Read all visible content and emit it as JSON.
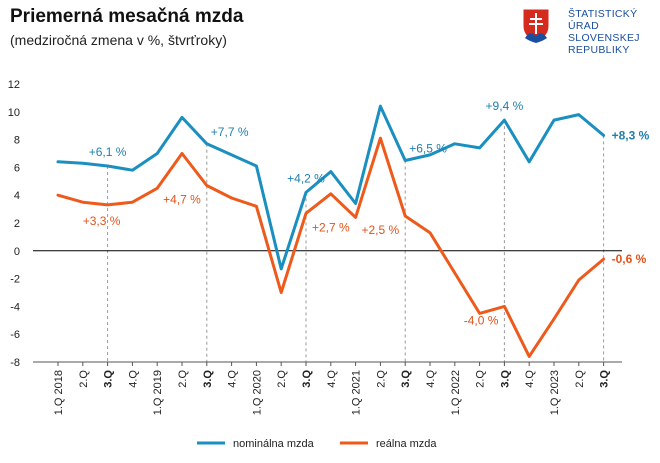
{
  "header": {
    "title": "Priemerná mesačná mzda",
    "subtitle": "(medziročná zmena v %, štvrťroky)"
  },
  "logo": {
    "lines": [
      "ŠTATISTICKÝ",
      "ÚRAD",
      "SLOVENSKEJ",
      "REPUBLIKY"
    ],
    "icon": "slovak-coat-of-arms-icon"
  },
  "colors": {
    "nominal": "#1a8fc0",
    "real": "#ee5a1c",
    "label_nominal": "#1f7fae",
    "label_real": "#e0531a"
  },
  "chart_data": {
    "type": "line",
    "title": "Priemerná mesačná mzda",
    "subtitle": "(medziročná zmena v %, štvrťroky)",
    "categories": [
      "1.Q 2018",
      "2.Q",
      "3.Q",
      "4.Q",
      "1.Q 2019",
      "2.Q",
      "3.Q",
      "4.Q",
      "1.Q 2020",
      "2.Q",
      "3.Q",
      "4.Q",
      "1.Q 2021",
      "2.Q",
      "3.Q",
      "4.Q",
      "1.Q 2022",
      "2.Q",
      "3.Q",
      "4.Q",
      "1.Q 2023",
      "2.Q",
      "3.Q"
    ],
    "bold_categories": [
      2,
      6,
      10,
      14,
      18,
      22
    ],
    "ylim": [
      -8,
      12
    ],
    "yticks": [
      -8,
      -6,
      -4,
      -2,
      0,
      2,
      4,
      6,
      8,
      10,
      12
    ],
    "grid": false,
    "legend_position": "bottom",
    "series": [
      {
        "name": "nominálna mzda",
        "key": "nominal",
        "values": [
          6.4,
          6.3,
          6.1,
          5.8,
          7.0,
          9.6,
          7.7,
          6.9,
          6.1,
          -1.3,
          4.2,
          5.7,
          3.4,
          10.4,
          6.5,
          6.9,
          7.7,
          7.4,
          9.4,
          6.4,
          9.4,
          9.8,
          8.3
        ]
      },
      {
        "name": "reálna mzda",
        "key": "real",
        "values": [
          4.0,
          3.5,
          3.3,
          3.5,
          4.5,
          7.0,
          4.7,
          3.8,
          3.2,
          -3.0,
          2.7,
          4.1,
          2.4,
          8.1,
          2.5,
          1.3,
          -1.6,
          -4.5,
          -4.0,
          -7.6,
          -4.9,
          -2.1,
          -0.6
        ]
      }
    ],
    "annotations": [
      {
        "series": "nominal",
        "index": 2,
        "text": "+6,1 %",
        "pos": "above"
      },
      {
        "series": "nominal",
        "index": 6,
        "text": "+7,7 %",
        "pos": "above-right"
      },
      {
        "series": "nominal",
        "index": 10,
        "text": "+4,2 %",
        "pos": "above"
      },
      {
        "series": "nominal",
        "index": 14,
        "text": "+6,5 %",
        "pos": "above-right"
      },
      {
        "series": "nominal",
        "index": 18,
        "text": "+9,4 %",
        "pos": "above"
      },
      {
        "series": "nominal",
        "index": 22,
        "text": "+8,3 %",
        "pos": "right-bold"
      },
      {
        "series": "real",
        "index": 2,
        "text": "+3,3 %",
        "pos": "below"
      },
      {
        "series": "real",
        "index": 6,
        "text": "+4,7 %",
        "pos": "below-left"
      },
      {
        "series": "real",
        "index": 10,
        "text": "+2,7 %",
        "pos": "below-right"
      },
      {
        "series": "real",
        "index": 14,
        "text": "+2,5 %",
        "pos": "below-left"
      },
      {
        "series": "real",
        "index": 18,
        "text": "-4,0 %",
        "pos": "below-left"
      },
      {
        "series": "real",
        "index": 22,
        "text": "-0,6 %",
        "pos": "right-bold"
      }
    ]
  }
}
